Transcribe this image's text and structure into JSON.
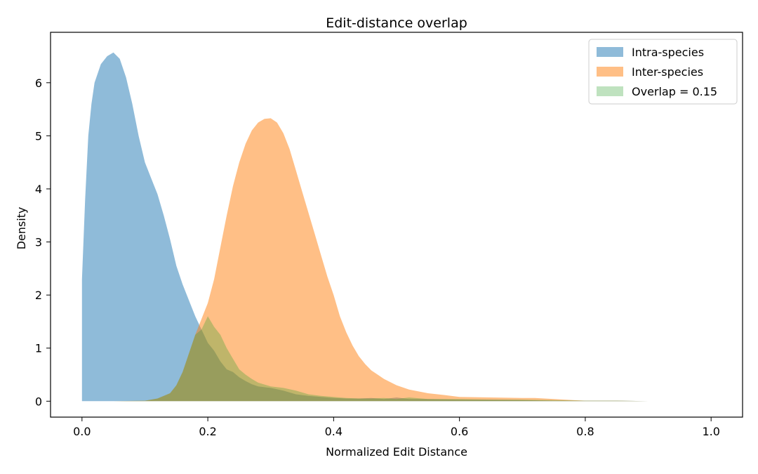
{
  "chart_data": {
    "type": "area",
    "title": "Edit-distance overlap",
    "xlabel": "Normalized Edit Distance",
    "ylabel": "Density",
    "xlim": [
      -0.05,
      1.05
    ],
    "ylim": [
      -0.3,
      6.95
    ],
    "xticks": [
      0.0,
      0.2,
      0.4,
      0.6,
      0.8,
      1.0
    ],
    "xtick_labels": [
      "0.0",
      "0.2",
      "0.4",
      "0.6",
      "0.8",
      "1.0"
    ],
    "yticks": [
      0,
      1,
      2,
      3,
      4,
      5,
      6
    ],
    "ytick_labels": [
      "0",
      "1",
      "2",
      "3",
      "4",
      "5",
      "6"
    ],
    "grid": false,
    "legend_position": "top-right",
    "series": [
      {
        "name": "Intra-species",
        "color": "#1f77b4",
        "alpha": 0.5,
        "x": [
          0.0,
          0.0,
          0.005,
          0.01,
          0.015,
          0.02,
          0.03,
          0.04,
          0.05,
          0.06,
          0.07,
          0.08,
          0.09,
          0.1,
          0.11,
          0.12,
          0.13,
          0.14,
          0.15,
          0.16,
          0.17,
          0.18,
          0.19,
          0.2,
          0.21,
          0.22,
          0.23,
          0.24,
          0.25,
          0.26,
          0.27,
          0.28,
          0.3,
          0.32,
          0.34,
          0.36,
          0.38,
          0.4,
          0.42,
          0.44,
          0.46,
          0.48,
          0.5,
          0.52,
          0.55,
          0.6,
          0.65,
          0.7,
          0.75,
          0.8,
          0.85,
          0.9,
          0.95,
          1.0
        ],
        "y": [
          0.0,
          2.3,
          3.8,
          5.0,
          5.6,
          6.0,
          6.35,
          6.5,
          6.57,
          6.45,
          6.1,
          5.6,
          5.0,
          4.5,
          4.2,
          3.9,
          3.5,
          3.05,
          2.55,
          2.2,
          1.9,
          1.6,
          1.35,
          1.1,
          0.95,
          0.75,
          0.6,
          0.55,
          0.45,
          0.38,
          0.32,
          0.28,
          0.25,
          0.2,
          0.13,
          0.1,
          0.08,
          0.06,
          0.05,
          0.05,
          0.06,
          0.04,
          0.07,
          0.04,
          0.04,
          0.03,
          0.03,
          0.02,
          0.01,
          0.01,
          0.01,
          0.0,
          0.0,
          0.0
        ]
      },
      {
        "name": "Inter-species",
        "color": "#ff7f0e",
        "alpha": 0.5,
        "x": [
          0.0,
          0.05,
          0.1,
          0.12,
          0.14,
          0.15,
          0.16,
          0.17,
          0.18,
          0.19,
          0.2,
          0.21,
          0.22,
          0.23,
          0.24,
          0.25,
          0.26,
          0.27,
          0.28,
          0.29,
          0.3,
          0.31,
          0.32,
          0.33,
          0.34,
          0.35,
          0.36,
          0.37,
          0.38,
          0.39,
          0.4,
          0.41,
          0.42,
          0.43,
          0.44,
          0.45,
          0.46,
          0.47,
          0.48,
          0.5,
          0.52,
          0.55,
          0.58,
          0.6,
          0.65,
          0.7,
          0.72,
          0.75,
          0.78,
          0.8,
          0.85,
          0.9,
          0.95,
          1.0
        ],
        "y": [
          0.0,
          0.0,
          0.01,
          0.05,
          0.15,
          0.3,
          0.55,
          0.9,
          1.25,
          1.55,
          1.85,
          2.3,
          2.9,
          3.5,
          4.05,
          4.5,
          4.85,
          5.1,
          5.25,
          5.32,
          5.33,
          5.25,
          5.05,
          4.75,
          4.35,
          3.95,
          3.55,
          3.15,
          2.75,
          2.35,
          2.0,
          1.6,
          1.3,
          1.05,
          0.85,
          0.7,
          0.58,
          0.5,
          0.42,
          0.3,
          0.22,
          0.15,
          0.11,
          0.08,
          0.07,
          0.06,
          0.06,
          0.04,
          0.02,
          0.01,
          0.01,
          0.0,
          0.0,
          0.0
        ]
      },
      {
        "name": "Overlap = 0.15",
        "color": "#2ca02c",
        "alpha": 0.3,
        "x": [
          0.0,
          0.05,
          0.1,
          0.12,
          0.14,
          0.15,
          0.16,
          0.17,
          0.18,
          0.19,
          0.2,
          0.21,
          0.22,
          0.23,
          0.24,
          0.25,
          0.26,
          0.27,
          0.28,
          0.3,
          0.32,
          0.34,
          0.36,
          0.38,
          0.4,
          0.42,
          0.44,
          0.46,
          0.48,
          0.5,
          0.52,
          0.55,
          0.6,
          0.65,
          0.7,
          0.75,
          0.8,
          0.85,
          0.9,
          0.95,
          1.0
        ],
        "y": [
          0.0,
          0.0,
          0.01,
          0.05,
          0.15,
          0.3,
          0.55,
          0.9,
          1.25,
          1.35,
          1.6,
          1.4,
          1.25,
          1.0,
          0.8,
          0.6,
          0.5,
          0.42,
          0.35,
          0.28,
          0.25,
          0.2,
          0.13,
          0.1,
          0.08,
          0.06,
          0.05,
          0.05,
          0.06,
          0.04,
          0.07,
          0.04,
          0.04,
          0.03,
          0.03,
          0.02,
          0.01,
          0.01,
          0.0,
          0.0,
          0.0
        ]
      }
    ]
  }
}
